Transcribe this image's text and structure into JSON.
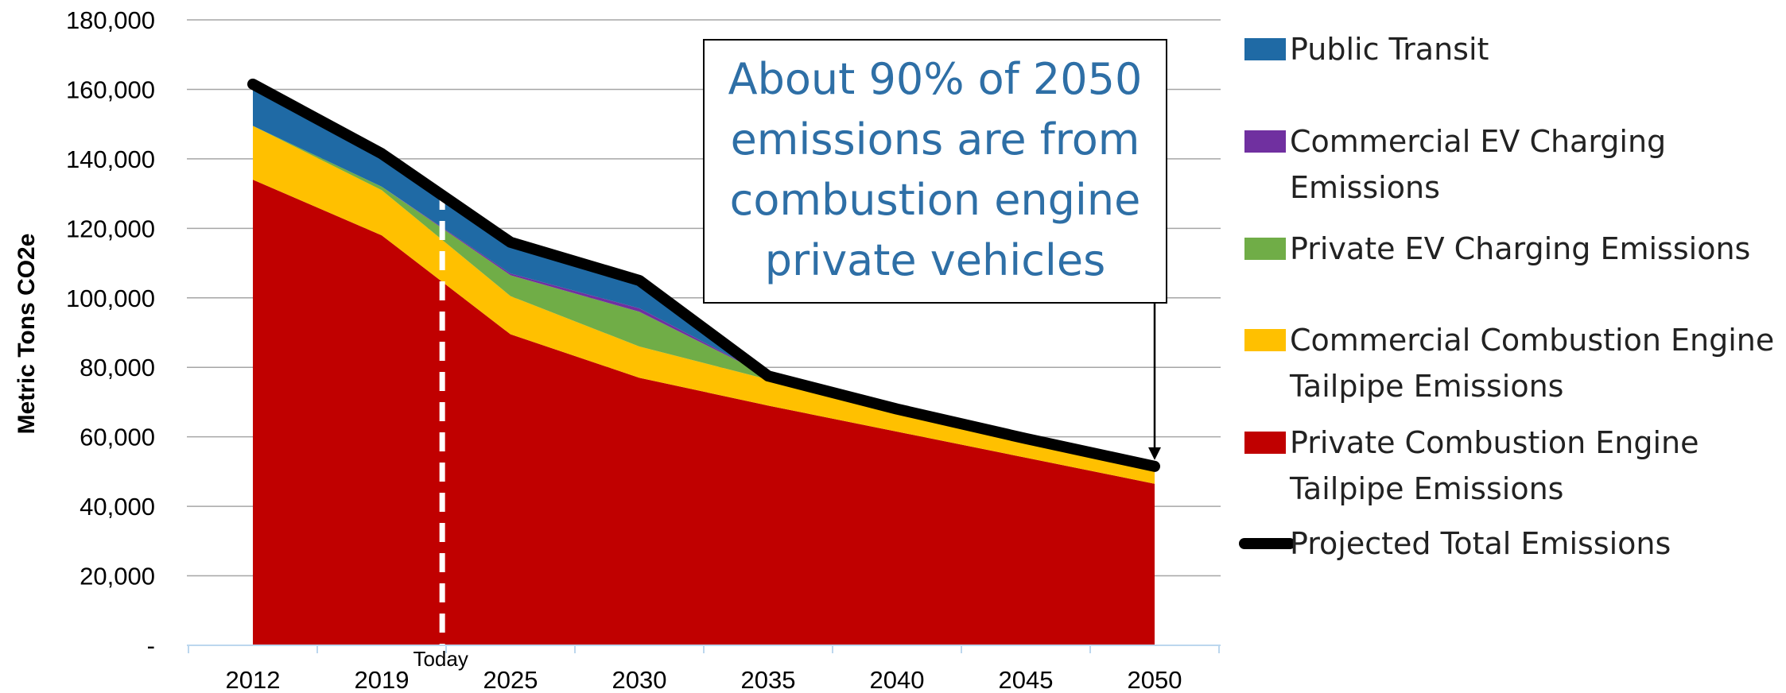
{
  "chart_data": {
    "type": "area",
    "stacked": true,
    "x": [
      "2012",
      "2019",
      "2025",
      "2030",
      "2035",
      "2040",
      "2045",
      "2050"
    ],
    "ylabel": "Metric Tons CO2e",
    "ylim": [
      0,
      180000
    ],
    "yticks": [
      {
        "value": 0,
        "label": "-"
      },
      {
        "value": 20000,
        "label": "20,000"
      },
      {
        "value": 40000,
        "label": "40,000"
      },
      {
        "value": 60000,
        "label": "60,000"
      },
      {
        "value": 80000,
        "label": "80,000"
      },
      {
        "value": 100000,
        "label": "100,000"
      },
      {
        "value": 120000,
        "label": "120,000"
      },
      {
        "value": 140000,
        "label": "140,000"
      },
      {
        "value": 160000,
        "label": "160,000"
      },
      {
        "value": 180000,
        "label": "180,000"
      }
    ],
    "grid": true,
    "series": [
      {
        "name": "Private Combustion Engine Tailpipe Emissions",
        "color": "#c00000",
        "values": [
          134000,
          118000,
          89500,
          77000,
          69000,
          61500,
          54000,
          46500
        ]
      },
      {
        "name": "Commercial Combustion Engine Tailpipe Emissions",
        "color": "#ffc000",
        "values": [
          15500,
          13000,
          11000,
          9000,
          7500,
          6500,
          5500,
          5000
        ]
      },
      {
        "name": "Private EV Charging Emissions",
        "color": "#70ad47",
        "values": [
          0,
          1000,
          6000,
          10000,
          1000,
          0,
          0,
          0
        ]
      },
      {
        "name": "Commercial EV Charging Emissions",
        "color": "#7030a0",
        "values": [
          0,
          0,
          500,
          1000,
          0,
          0,
          0,
          0
        ]
      },
      {
        "name": "Public Transit",
        "color": "#1f6aa5",
        "values": [
          12000,
          9500,
          9000,
          8000,
          0,
          0,
          0,
          0
        ]
      }
    ],
    "total_line": {
      "name": "Projected Total Emissions",
      "color": "#000000",
      "values": [
        161500,
        141500,
        116000,
        105000,
        77500,
        68000,
        59500,
        51500
      ]
    },
    "today_marker": {
      "label": "Today",
      "x_fraction_between": [
        "2019",
        "2025"
      ],
      "fraction": 0.47
    },
    "annotation": "About 90% of 2050 emissions are from combustion engine private vehicles",
    "annotation_lines": [
      "About 90% of 2050",
      "emissions are from",
      "combustion engine",
      "private vehicles"
    ],
    "legend": {
      "placement": "right",
      "entries": [
        {
          "lines": [
            "Public Transit"
          ],
          "color": "#1f6aa5",
          "kind": "box"
        },
        {
          "lines": [
            "Commercial EV Charging",
            "Emissions"
          ],
          "color": "#7030a0",
          "kind": "box"
        },
        {
          "lines": [
            "Private EV Charging Emissions"
          ],
          "color": "#70ad47",
          "kind": "box"
        },
        {
          "lines": [
            "Commercial Combustion Engine",
            "Tailpipe Emissions"
          ],
          "color": "#ffc000",
          "kind": "box"
        },
        {
          "lines": [
            "Private Combustion Engine",
            "Tailpipe Emissions"
          ],
          "color": "#c00000",
          "kind": "box"
        },
        {
          "lines": [
            "Projected Total Emissions"
          ],
          "color": "#000000",
          "kind": "line"
        }
      ]
    }
  }
}
